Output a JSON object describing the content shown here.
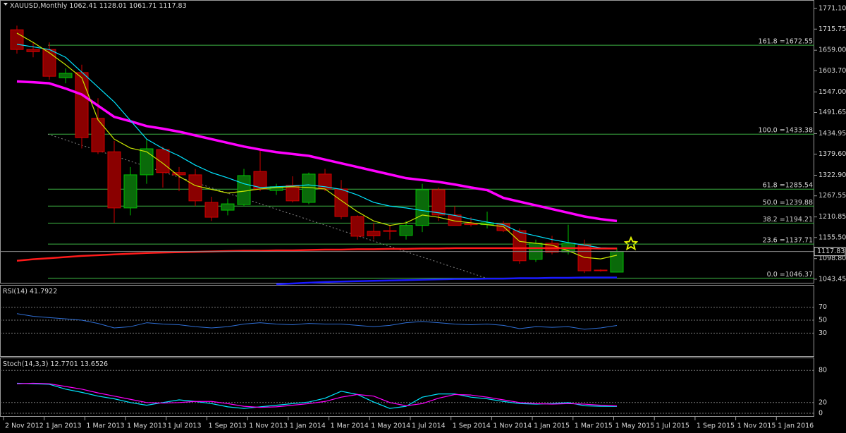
{
  "chart_data": {
    "type": "candlestick",
    "title": "XAUUSD,Monthly",
    "ylim": [
      1030,
      1794
    ],
    "yticks": [
      {
        "value": 1771.1,
        "label": "1771.10"
      },
      1715.75,
      {
        "value": 1659,
        "label": "1659.00"
      },
      {
        "value": 1603.7,
        "label": "1603.70"
      },
      {
        "value": 1547,
        "label": "1547.00"
      },
      1491.65,
      1434.95,
      {
        "value": 1379.6,
        "label": "1379.60"
      },
      {
        "value": 1322.9,
        "label": "1322.90"
      },
      1267.55,
      1210.85,
      {
        "value": 1155.5,
        "label": "1155.50"
      },
      {
        "value": 1098.8,
        "label": "1098.80"
      },
      1043.45
    ],
    "x_labels": [
      "2 Nov 2012",
      "1 Jan 2013",
      "1 Mar 2013",
      "1 May 2013",
      "1 Jul 2013",
      "1 Sep 2013",
      "1 Nov 2013",
      "1 Jan 2014",
      "1 Mar 2014",
      "1 May 2014",
      "1 Jul 2014",
      "1 Sep 2014",
      "1 Nov 2014",
      "1 Jan 2015",
      "1 Mar 2015",
      "1 May 2015",
      "1 Jul 2015",
      "1 Sep 2015",
      "1 Nov 2015",
      "1 Jan 2016"
    ],
    "candles": {
      "up_color": "#00c000",
      "down_color": "#d00000",
      "open": [
        1714,
        1661,
        1661,
        1585,
        1599,
        1476,
        1386,
        1235,
        1324,
        1392,
        1330,
        1324,
        1250,
        1229,
        1244,
        1333,
        1282,
        1296,
        1250,
        1326,
        1286,
        1212,
        1172,
        1174,
        1161,
        1188,
        1284,
        1216,
        1193,
        1190,
        1193,
        1174,
        1097,
        1140,
        1117,
        1136,
        1068,
        1062.41
      ],
      "high": [
        1725,
        1680,
        1680,
        1610,
        1620,
        1530,
        1415,
        1345,
        1420,
        1400,
        1345,
        1340,
        1265,
        1260,
        1340,
        1390,
        1300,
        1320,
        1330,
        1340,
        1310,
        1215,
        1195,
        1190,
        1200,
        1300,
        1290,
        1240,
        1210,
        1225,
        1200,
        1180,
        1150,
        1160,
        1190,
        1150,
        1070,
        1128.01
      ],
      "low": [
        1650,
        1640,
        1580,
        1570,
        1395,
        1380,
        1195,
        1215,
        1300,
        1290,
        1280,
        1240,
        1200,
        1215,
        1240,
        1280,
        1270,
        1250,
        1245,
        1280,
        1205,
        1150,
        1150,
        1150,
        1150,
        1170,
        1200,
        1190,
        1185,
        1180,
        1170,
        1085,
        1090,
        1110,
        1110,
        1060,
        1064,
        1061.71
      ],
      "close": [
        1661,
        1655,
        1589,
        1597,
        1424,
        1386,
        1235,
        1324,
        1394,
        1330,
        1324,
        1254,
        1210,
        1246,
        1322,
        1286,
        1292,
        1254,
        1326,
        1286,
        1212,
        1159,
        1160,
        1172,
        1188,
        1284,
        1216,
        1188,
        1190,
        1195,
        1174,
        1093,
        1140,
        1116,
        1140,
        1066,
        1067,
        1117.83
      ]
    },
    "series": [
      {
        "color": "#ff00ff",
        "width": 3.5,
        "values": [
          1575,
          1573,
          1570,
          1556,
          1540,
          1510,
          1480,
          1468,
          1455,
          1448,
          1440,
          1430,
          1420,
          1410,
          1400,
          1392,
          1385,
          1380,
          1375,
          1365,
          1355,
          1345,
          1335,
          1325,
          1315,
          1310,
          1305,
          1298,
          1290,
          1283,
          1262,
          1252,
          1242,
          1232,
          1222,
          1212,
          1205,
          1200
        ]
      },
      {
        "color": "#00e5ff",
        "width": 1.2,
        "values": [
          1675,
          1668,
          1661,
          1640,
          1600,
          1560,
          1520,
          1470,
          1420,
          1395,
          1375,
          1350,
          1330,
          1316,
          1300,
          1290,
          1292,
          1294,
          1297,
          1292,
          1285,
          1270,
          1250,
          1240,
          1235,
          1228,
          1222,
          1215,
          1205,
          1197,
          1190,
          1170,
          1160,
          1150,
          1142,
          1135,
          1128,
          1127
        ]
      },
      {
        "color": "#c8e600",
        "width": 1.2,
        "values": [
          1705,
          1680,
          1652,
          1620,
          1585,
          1472,
          1420,
          1396,
          1386,
          1355,
          1320,
          1295,
          1285,
          1275,
          1280,
          1286,
          1290,
          1292,
          1290,
          1286,
          1255,
          1225,
          1200,
          1188,
          1195,
          1216,
          1210,
          1200,
          1195,
          1190,
          1185,
          1145,
          1140,
          1135,
          1120,
          1102,
          1098,
          1108
        ]
      },
      {
        "color": "#ff1a1a",
        "width": 2.5,
        "values": [
          1093,
          1097,
          1100,
          1103,
          1106,
          1108,
          1110,
          1112,
          1114,
          1115,
          1116,
          1117,
          1118,
          1119,
          1120,
          1120,
          1121,
          1121,
          1122,
          1123,
          1123,
          1124,
          1124,
          1125,
          1125,
          1126,
          1126,
          1127,
          1127,
          1127,
          1127,
          1127,
          1127,
          1127,
          1127,
          1127,
          1126,
          1126
        ]
      },
      {
        "color": "#1a1aff",
        "width": 2.5,
        "values": [
          null,
          null,
          null,
          null,
          null,
          null,
          null,
          null,
          null,
          null,
          null,
          null,
          null,
          null,
          null,
          null,
          1030,
          1032,
          1034,
          1036,
          1037,
          1038,
          1039,
          1040,
          1041,
          1042,
          1043,
          1044,
          1044,
          1045,
          1045,
          1046,
          1046,
          1047,
          1047,
          1048,
          1048,
          1048
        ]
      }
    ],
    "fib_levels": [
      {
        "label": "161.8 =1672.55",
        "value": 1672.55
      },
      {
        "label": "100.0 =1433.38",
        "value": 1433.38
      },
      {
        "label": "61.8 =1285.54",
        "value": 1285.54
      },
      {
        "label": "50.0 =1239.88",
        "value": 1239.88
      },
      {
        "label": "38.2 =1194.21",
        "value": 1194.21
      },
      {
        "label": "23.6 =1137.71",
        "value": 1137.71
      },
      {
        "label": "0.0 =1046.37",
        "value": 1046.37
      }
    ],
    "fib_color": "#3cb043",
    "rsi": {
      "title": "RSI(14)",
      "color": "#2f6fd6",
      "ylim": [
        0,
        100
      ],
      "yticks": [
        70,
        50,
        30
      ],
      "values": [
        60,
        56,
        54,
        52,
        50,
        45,
        38,
        40,
        46,
        44,
        43,
        40,
        38,
        40,
        44,
        46,
        44,
        43,
        45,
        44,
        44,
        42,
        40,
        42,
        46,
        48,
        46,
        44,
        43,
        44,
        42,
        37,
        40,
        39,
        40,
        36,
        38,
        41.7922
      ]
    },
    "stoch": {
      "title": "Stoch(14,3,3)",
      "ylim": [
        0,
        100
      ],
      "yticks": [
        80,
        20,
        0
      ],
      "series": [
        {
          "color": "#00e5ff",
          "values": [
            56,
            55,
            54,
            45,
            39,
            32,
            27,
            20,
            15,
            20,
            25,
            22,
            18,
            12,
            9,
            12,
            15,
            18,
            21,
            28,
            41,
            35,
            21,
            9,
            13,
            30,
            36,
            36,
            30,
            27,
            22,
            18,
            17,
            18,
            20,
            14,
            13,
            12.7701
          ]
        },
        {
          "color": "#ff00ff",
          "values": [
            55,
            56,
            55,
            50,
            45,
            38,
            32,
            26,
            20,
            19,
            20,
            22,
            22,
            18,
            13,
            11,
            12,
            15,
            18,
            22,
            30,
            35,
            32,
            20,
            14,
            18,
            28,
            35,
            34,
            30,
            25,
            20,
            18,
            17,
            18,
            17,
            15,
            13.6526
          ]
        }
      ]
    }
  }
}
